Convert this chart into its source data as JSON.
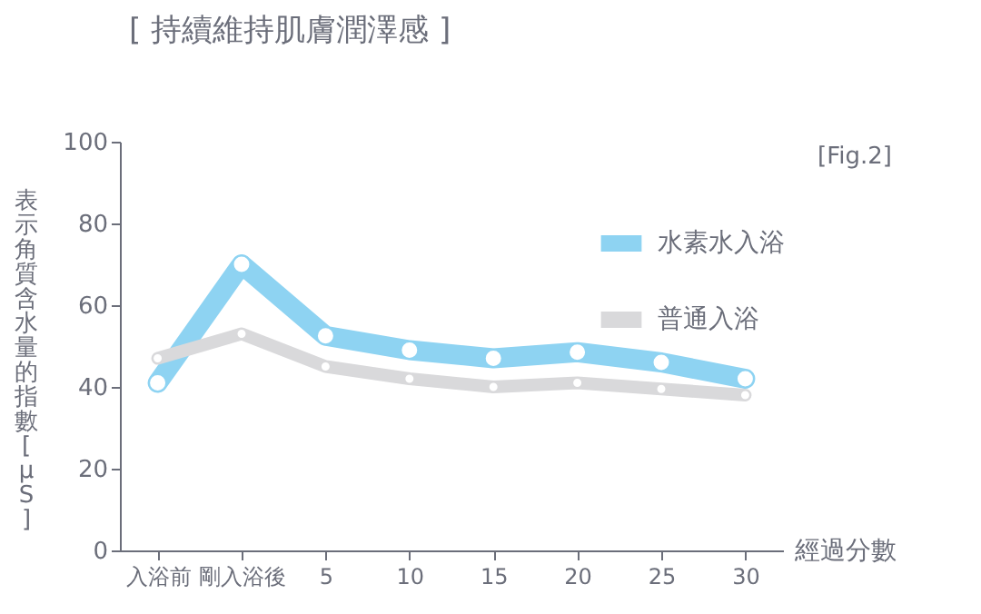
{
  "chart_data": {
    "type": "line",
    "title": "[ 持續維持肌膚潤澤感 ]",
    "xlabel": "經過分數",
    "ylabel": "表示角質含水量的指數[μS]",
    "annotations": [
      "[Fig.2]"
    ],
    "categories": [
      "入浴前",
      "剛入浴後",
      "5",
      "10",
      "15",
      "20",
      "25",
      "30"
    ],
    "series": [
      {
        "name": "水素水入浴",
        "color": "#8ed3f2",
        "values": [
          41,
          70,
          52.5,
          49,
          47,
          48.5,
          46,
          42
        ]
      },
      {
        "name": "普通入浴",
        "color": "#d9d9db",
        "values": [
          47,
          53,
          45,
          42,
          40,
          41,
          39.5,
          38
        ]
      }
    ],
    "ylim": [
      0,
      100
    ],
    "yticks": [
      0,
      20,
      40,
      60,
      80,
      100
    ],
    "grid": false,
    "legend": "top right",
    "marker": "circle"
  }
}
